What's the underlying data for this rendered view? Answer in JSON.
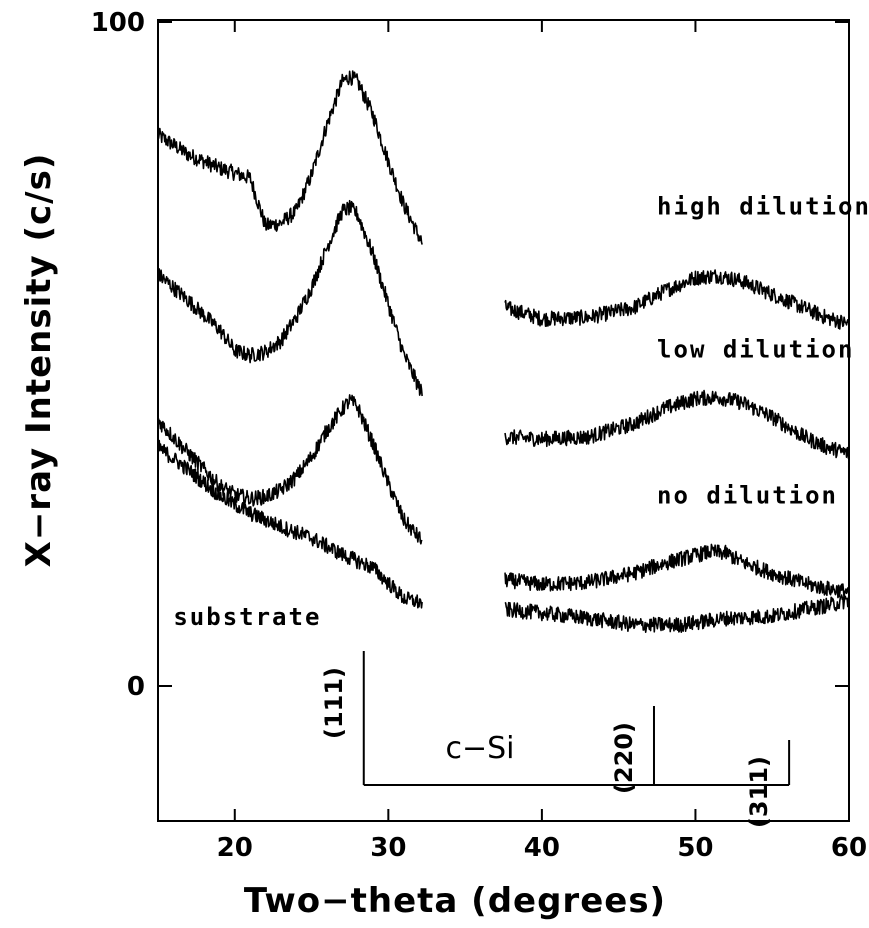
{
  "chart_data": {
    "type": "line",
    "xlabel": "Two−theta (degrees)",
    "ylabel": "X−ray Intensity (c/s)",
    "xlim": [
      15,
      60
    ],
    "ylim": [
      0,
      100
    ],
    "x_ticks": [
      20,
      30,
      40,
      50,
      60
    ],
    "y_ticks": [
      0,
      100
    ],
    "x_tick_labels": [
      "20",
      "30",
      "40",
      "50",
      "60"
    ],
    "y_tick_labels": [
      "0",
      "100"
    ],
    "grid": false,
    "segments": [
      [
        15,
        32.2
      ],
      [
        37.6,
        60
      ]
    ],
    "series": [
      {
        "name": "high dilution",
        "x": [
          15,
          17,
          19,
          21,
          22,
          23,
          24,
          25,
          26,
          27,
          27.5,
          28,
          29,
          30,
          31,
          32.2,
          37.6,
          40,
          43,
          46,
          48,
          50,
          51.5,
          53,
          55,
          57,
          58.5,
          60
        ],
        "y": [
          83,
          80,
          78,
          76.5,
          69.3,
          69.7,
          71.5,
          77,
          84.5,
          91,
          91.8,
          91,
          86,
          79,
          72.5,
          66.7,
          57,
          55.3,
          55.5,
          57,
          59.5,
          61.5,
          61.8,
          61,
          59,
          57,
          55.5,
          54.5
        ]
      },
      {
        "name": "low dilution",
        "x": [
          15,
          17,
          19,
          20,
          21,
          22,
          23,
          24,
          25,
          26,
          27,
          27.5,
          28,
          29,
          30,
          31,
          32.2,
          37.6,
          40,
          43,
          46,
          48,
          50,
          51.5,
          53,
          55,
          57,
          58.5,
          60
        ],
        "y": [
          62,
          58,
          53.7,
          50.5,
          49.8,
          50.3,
          52,
          55.5,
          60,
          66,
          71.5,
          72,
          71,
          65,
          57.5,
          50,
          44,
          37.5,
          37.2,
          37.5,
          39.5,
          41.8,
          43.3,
          43.5,
          42.7,
          40.5,
          37.6,
          36,
          35
        ]
      },
      {
        "name": "no dilution",
        "x": [
          15,
          17,
          19,
          20,
          21,
          22,
          23,
          24,
          25,
          26,
          27,
          27.5,
          28,
          29,
          30,
          31,
          32.2,
          37.6,
          40,
          43,
          46,
          48,
          50,
          51,
          52,
          53,
          55,
          57,
          58.5,
          60
        ],
        "y": [
          40,
          35,
          30.2,
          28.8,
          28.2,
          28.5,
          29.5,
          31.5,
          34.5,
          38.5,
          41.7,
          43,
          42,
          36.5,
          30.5,
          25,
          21.8,
          16,
          15.3,
          15.6,
          17,
          18.5,
          19.7,
          20.2,
          20,
          18.7,
          17,
          15.5,
          14.7,
          14.2
        ]
      },
      {
        "name": "substrate",
        "x": [
          15,
          17,
          19,
          21,
          23,
          25,
          27,
          29,
          31,
          32.2,
          37.6,
          40,
          43,
          46,
          49,
          52,
          55,
          57,
          59,
          60
        ],
        "y": [
          36,
          32.5,
          28.7,
          26,
          24,
          22.3,
          19.8,
          17.8,
          13.2,
          12.5,
          11.5,
          11,
          10.2,
          9.2,
          9.2,
          10.2,
          10.5,
          11.5,
          12.3,
          13
        ]
      }
    ],
    "annotations": [
      {
        "text": "high dilution",
        "x": 47.5,
        "y": 71
      },
      {
        "text": "low dilution",
        "x": 47.5,
        "y": 49.5
      },
      {
        "text": "no dilution",
        "x": 47.5,
        "y": 27.5
      },
      {
        "text": "substrate",
        "x": 16,
        "y": 9.2
      }
    ],
    "reference": {
      "label": "c−Si",
      "peaks": [
        {
          "label": "(111)",
          "x": 28.4
        },
        {
          "label": "(220)",
          "x": 47.3
        },
        {
          "label": "(311)",
          "x": 56.1
        }
      ]
    }
  }
}
